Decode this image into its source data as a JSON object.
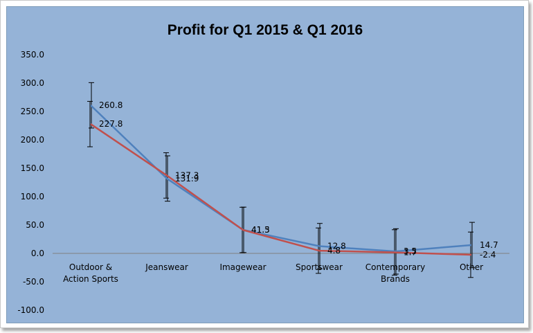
{
  "chart_data": {
    "type": "line",
    "title": "Profit  for Q1 2015 & Q1 2016",
    "categories": [
      [
        "Outdoor &",
        "Action Sports"
      ],
      [
        "Jeanswear"
      ],
      [
        "Imagewear"
      ],
      [
        "Sportswear"
      ],
      [
        "Contemporary",
        "Brands"
      ],
      [
        "Other"
      ]
    ],
    "ylim": [
      -100,
      350
    ],
    "ytick_step": 50,
    "ytick_labels": [
      "350.0",
      "300.0",
      "250.0",
      "200.0",
      "150.0",
      "100.0",
      "50.0",
      "0.0",
      "-50.0",
      "-100.0"
    ],
    "grid": false,
    "legend": "none",
    "series": [
      {
        "color": "#4f81bd",
        "values": [
          260.8,
          131.9,
          41.5,
          12.8,
          3.5,
          14.7
        ],
        "labels": [
          "260.8",
          "131.9",
          "41.5",
          "12.8",
          "3.5",
          "14.7"
        ],
        "error": 40
      },
      {
        "color": "#c0504d",
        "values": [
          227.8,
          137.3,
          41.3,
          4.8,
          1.7,
          -2.4
        ],
        "labels": [
          "227.8",
          "137.3",
          "41.3",
          "4.8",
          "1.7",
          "-2.4"
        ],
        "error": 40
      }
    ]
  }
}
